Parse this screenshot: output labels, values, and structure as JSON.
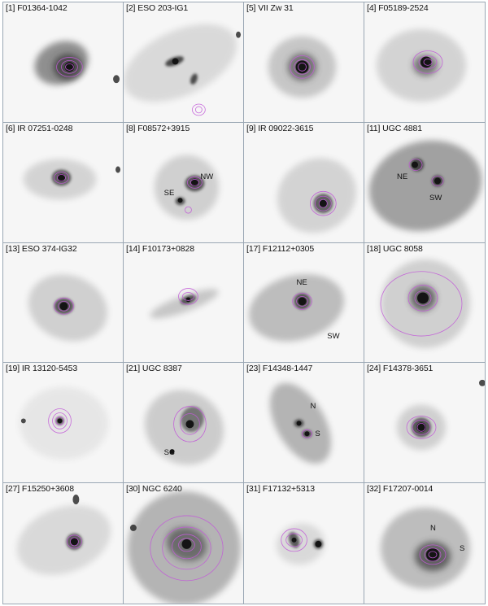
{
  "panels": [
    {
      "label": "[1] F01364-1042",
      "annotations": []
    },
    {
      "label": "[2] ESO 203-IG1",
      "annotations": []
    },
    {
      "label": "[5] VII Zw 31",
      "annotations": []
    },
    {
      "label": "[4] F05189-2524",
      "annotations": []
    },
    {
      "label": "[6] IR 07251-0248",
      "annotations": []
    },
    {
      "label": "[8] F08572+3915",
      "annotations": [
        "NW",
        "SE"
      ]
    },
    {
      "label": "[9] IR 09022-3615",
      "annotations": []
    },
    {
      "label": "[11] UGC 4881",
      "annotations": [
        "NE",
        "SW"
      ]
    },
    {
      "label": "[13] ESO 374-IG32",
      "annotations": []
    },
    {
      "label": "[14] F10173+0828",
      "annotations": []
    },
    {
      "label": "[17] F12112+0305",
      "annotations": [
        "NE",
        "SW"
      ]
    },
    {
      "label": "[18] UGC 8058",
      "annotations": []
    },
    {
      "label": "[19] IR 13120-5453",
      "annotations": []
    },
    {
      "label": "[21] UGC 8387",
      "annotations": [
        "SC"
      ]
    },
    {
      "label": "[23] F14348-1447",
      "annotations": [
        "N",
        "S"
      ]
    },
    {
      "label": "[24] F14378-3651",
      "annotations": []
    },
    {
      "label": "[27] F15250+3608",
      "annotations": []
    },
    {
      "label": "[30] NGC 6240",
      "annotations": []
    },
    {
      "label": "[31] F17132+5313",
      "annotations": []
    },
    {
      "label": "[32] F17207-0014",
      "annotations": [
        "N",
        "S"
      ]
    }
  ],
  "colors": {
    "contour": "#c25bd8",
    "core": "#141414",
    "galaxy": "#3a3a3a",
    "panel_bg": "#f6f6f6",
    "grid_line": "#9aa7b4"
  }
}
